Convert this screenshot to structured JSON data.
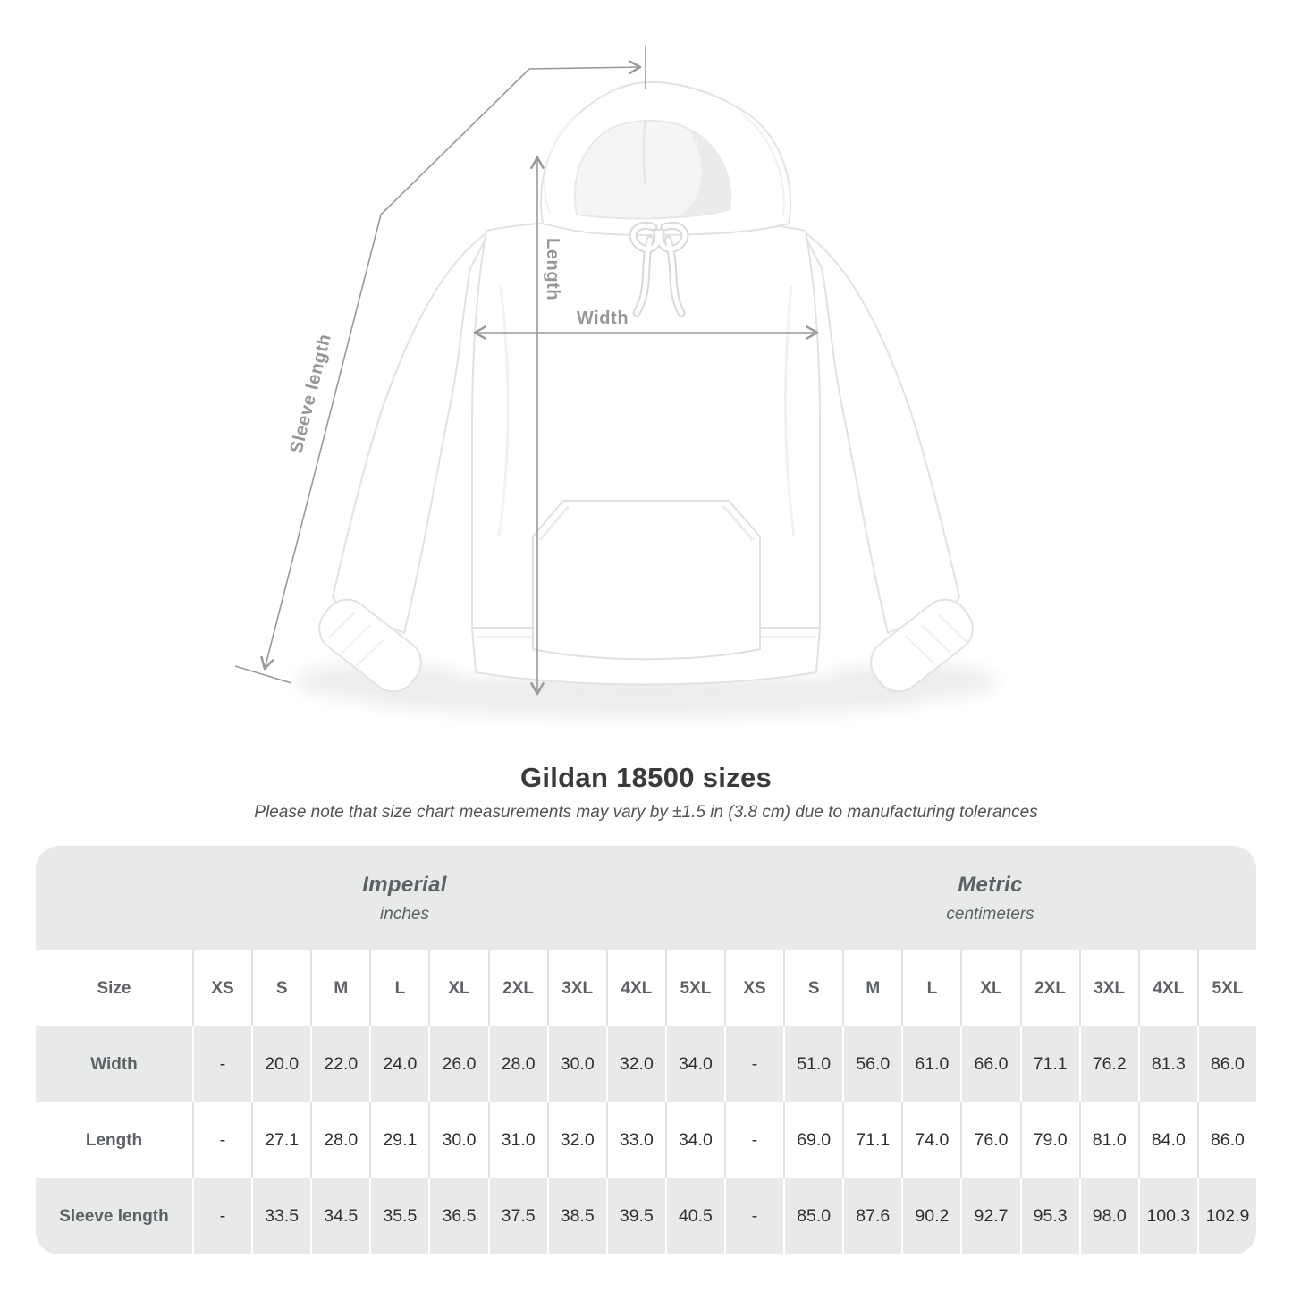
{
  "diagram": {
    "labels": {
      "length": "Length",
      "width": "Width",
      "sleeve_length": "Sleeve length"
    },
    "colors": {
      "line": "#969a9c",
      "label": "#94989b"
    }
  },
  "header": {
    "title": "Gildan 18500 sizes",
    "subtitle": "Please note that size chart measurements may vary by ±1.5 in (3.8 cm) due to manufacturing tolerances"
  },
  "table": {
    "corner_label": "Size",
    "groups": [
      {
        "label": "Imperial",
        "unit": "inches"
      },
      {
        "label": "Metric",
        "unit": "centimeters"
      }
    ],
    "sizes": [
      "XS",
      "S",
      "M",
      "L",
      "XL",
      "2XL",
      "3XL",
      "4XL",
      "5XL"
    ],
    "rows": [
      {
        "label": "Width",
        "imperial": [
          "-",
          "20.0",
          "22.0",
          "24.0",
          "26.0",
          "28.0",
          "30.0",
          "32.0",
          "34.0"
        ],
        "metric": [
          "-",
          "51.0",
          "56.0",
          "61.0",
          "66.0",
          "71.1",
          "76.2",
          "81.3",
          "86.0"
        ]
      },
      {
        "label": "Length",
        "imperial": [
          "-",
          "27.1",
          "28.0",
          "29.1",
          "30.0",
          "31.0",
          "32.0",
          "33.0",
          "34.0"
        ],
        "metric": [
          "-",
          "69.0",
          "71.1",
          "74.0",
          "76.0",
          "79.0",
          "81.0",
          "84.0",
          "86.0"
        ]
      },
      {
        "label": "Sleeve length",
        "imperial": [
          "-",
          "33.5",
          "34.5",
          "35.5",
          "36.5",
          "37.5",
          "38.5",
          "39.5",
          "40.5"
        ],
        "metric": [
          "-",
          "85.0",
          "87.6",
          "90.2",
          "92.7",
          "95.3",
          "98.0",
          "100.3",
          "102.9"
        ]
      }
    ],
    "colors": {
      "band": "#e8e9e9",
      "header_text": "#5d6165",
      "data_text": "#2d2f31"
    }
  },
  "chart_data": {
    "type": "table",
    "title": "Gildan 18500 sizes",
    "note": "Please note that size chart measurements may vary by ±1.5 in (3.8 cm) due to manufacturing tolerances",
    "column_groups": [
      "Imperial (inches)",
      "Metric (centimeters)"
    ],
    "columns": [
      "Size",
      "XS",
      "S",
      "M",
      "L",
      "XL",
      "2XL",
      "3XL",
      "4XL",
      "5XL",
      "XS",
      "S",
      "M",
      "L",
      "XL",
      "2XL",
      "3XL",
      "4XL",
      "5XL"
    ],
    "rows": [
      [
        "Width",
        "-",
        20.0,
        22.0,
        24.0,
        26.0,
        28.0,
        30.0,
        32.0,
        34.0,
        "-",
        51.0,
        56.0,
        61.0,
        66.0,
        71.1,
        76.2,
        81.3,
        86.0
      ],
      [
        "Length",
        "-",
        27.1,
        28.0,
        29.1,
        30.0,
        31.0,
        32.0,
        33.0,
        34.0,
        "-",
        69.0,
        71.1,
        74.0,
        76.0,
        79.0,
        81.0,
        84.0,
        86.0
      ],
      [
        "Sleeve length",
        "-",
        33.5,
        34.5,
        35.5,
        36.5,
        37.5,
        38.5,
        39.5,
        40.5,
        "-",
        85.0,
        87.6,
        90.2,
        92.7,
        95.3,
        98.0,
        100.3,
        102.9
      ]
    ]
  }
}
